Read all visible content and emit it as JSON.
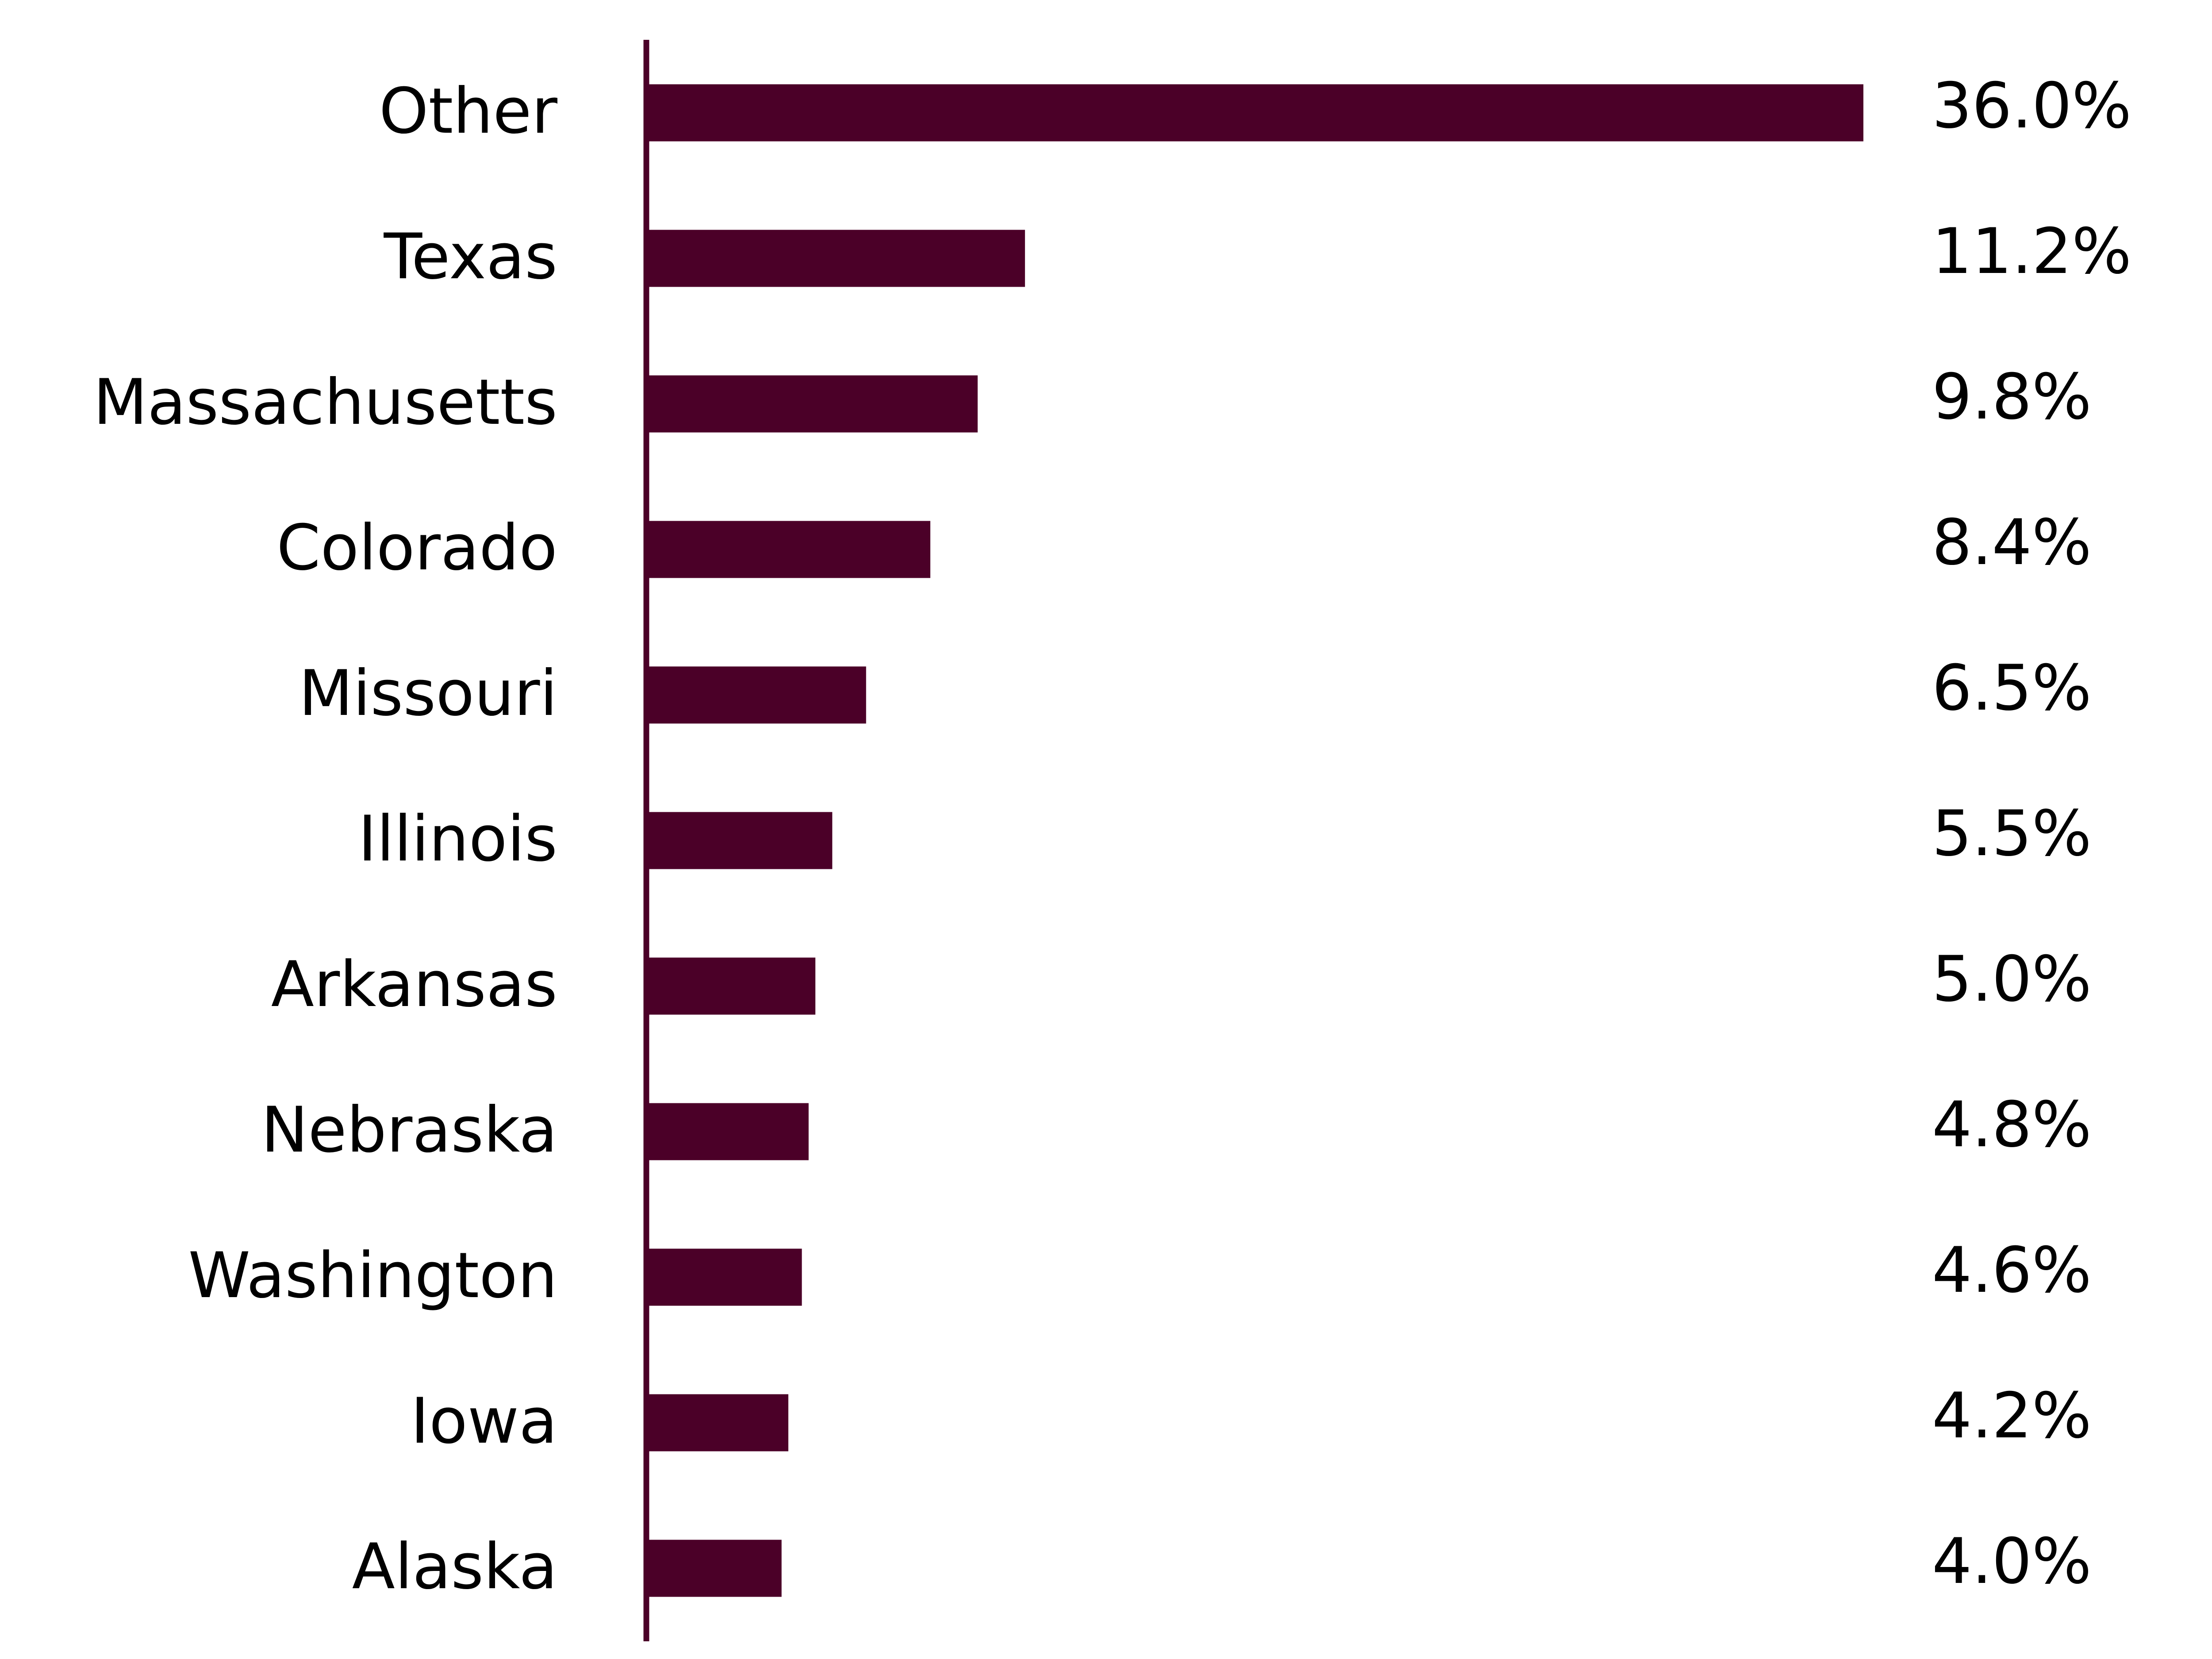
{
  "chart_data": {
    "type": "bar",
    "orientation": "horizontal",
    "categories": [
      "Other",
      "Texas",
      "Massachusetts",
      "Colorado",
      "Missouri",
      "Illinois",
      "Arkansas",
      "Nebraska",
      "Washington",
      "Iowa",
      "Alaska"
    ],
    "values": [
      36.0,
      11.2,
      9.8,
      8.4,
      6.5,
      5.5,
      5.0,
      4.8,
      4.6,
      4.2,
      4.0
    ],
    "value_labels": [
      "36.0%",
      "11.2%",
      "9.8%",
      "8.4%",
      "6.5%",
      "5.5%",
      "5.0%",
      "4.8%",
      "4.6%",
      "4.2%",
      "4.0%"
    ],
    "color": "#4b0028"
  }
}
